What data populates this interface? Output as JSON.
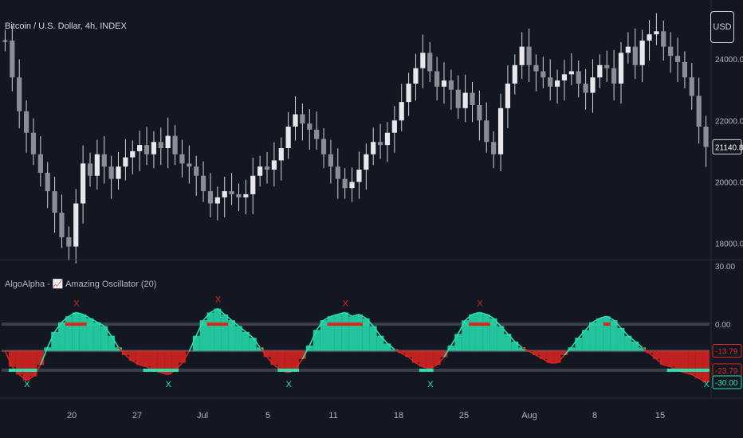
{
  "header": {
    "symbol_title": "Bitcoin / U.S. Dollar, 4h, INDEX",
    "currency_button": "USD"
  },
  "indicator": {
    "title": "AlgoAlpha - 📈 Amazing Oscillator (20)"
  },
  "colors": {
    "background": "#131722",
    "candle": "#d1d4dc",
    "bull": "#26e3b0",
    "bear": "#e0241f",
    "level": "#5d606b",
    "text": "#b2b5be"
  },
  "chart_data": [
    {
      "type": "candlestick",
      "title": "Bitcoin / U.S. Dollar, 4h, INDEX",
      "price_axis_ticks": [
        "24000.00",
        "22000.00",
        "20000.00",
        "18000.00"
      ],
      "ylim": [
        17500,
        25400
      ],
      "current_price_label": "21140.87",
      "current_price": 21140.87,
      "x_tick_labels": [
        "20",
        "27",
        "Jul",
        "5",
        "11",
        "18",
        "25",
        "Aug",
        "8",
        "15"
      ],
      "close_series": [
        24600,
        23400,
        22300,
        21600,
        20900,
        20300,
        19700,
        19000,
        18200,
        17900,
        19300,
        20600,
        20200,
        20900,
        20500,
        20100,
        20500,
        20800,
        21000,
        21200,
        20900,
        21300,
        21100,
        21500,
        20900,
        20600,
        20500,
        20200,
        19700,
        19300,
        19500,
        19700,
        19600,
        19500,
        19600,
        20200,
        20500,
        20400,
        20700,
        21100,
        21800,
        22200,
        21900,
        21700,
        21400,
        20900,
        20500,
        20100,
        19800,
        20000,
        20400,
        20900,
        21300,
        21200,
        21600,
        22000,
        22600,
        23200,
        23700,
        24200,
        23600,
        23100,
        23300,
        23000,
        22400,
        22900,
        22500,
        22000,
        21300,
        20900,
        22400,
        23200,
        23800,
        24400,
        23800,
        23600,
        23400,
        23100,
        23300,
        23500,
        23600,
        23200,
        22900,
        23400,
        23800,
        23700,
        23200,
        24200,
        24400,
        23800,
        24600,
        24800,
        24900,
        24400,
        24100,
        23900,
        23400,
        22800,
        21800,
        21140
      ]
    },
    {
      "type": "area",
      "title": "AlgoAlpha - 📈 Amazing Oscillator (20)",
      "ylim": [
        -30,
        30
      ],
      "levels": [
        0,
        -13.79,
        -23.79
      ],
      "axis_labels": [
        "30.00",
        "0.00",
        "-13.79",
        "-23.79",
        "-30.00"
      ],
      "signal_label": "X",
      "signals_bullish_count": 6,
      "signals_bearish_count": 2,
      "series_values": [
        -14,
        -22,
        -26,
        -29,
        -27,
        -21,
        -12,
        -4,
        1,
        4,
        6,
        5,
        3,
        1,
        -1,
        -6,
        -12,
        -16,
        -19,
        -21,
        -22,
        -24,
        -25,
        -26,
        -24,
        -20,
        -14,
        -6,
        2,
        6,
        8,
        5,
        2,
        -1,
        -4,
        -7,
        -12,
        -17,
        -21,
        -24,
        -25,
        -23,
        -18,
        -11,
        -3,
        2,
        4,
        5,
        6,
        4,
        5,
        3,
        -1,
        -6,
        -10,
        -13,
        -15,
        -17,
        -20,
        -22,
        -23,
        -21,
        -17,
        -11,
        -5,
        2,
        5,
        6,
        5,
        3,
        -1,
        -5,
        -9,
        -12,
        -14,
        -16,
        -18,
        -20,
        -20,
        -16,
        -12,
        -7,
        -3,
        1,
        3,
        4,
        2,
        -2,
        -6,
        -9,
        -12,
        -15,
        -18,
        -21,
        -22,
        -24,
        -25,
        -26,
        -28,
        -30
      ]
    }
  ]
}
